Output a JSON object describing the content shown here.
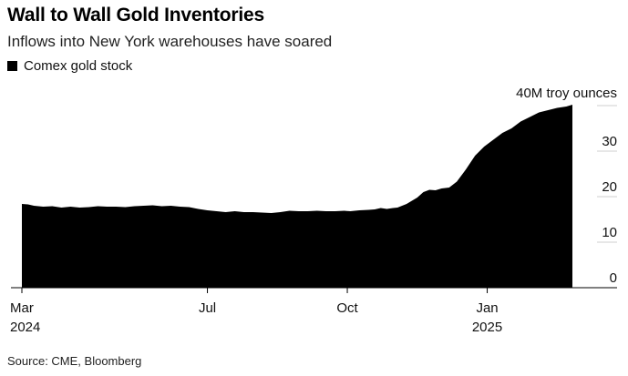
{
  "header": {
    "title": "Wall to Wall Gold Inventories",
    "subtitle": "Inflows into New York warehouses have soared"
  },
  "footer": {
    "source": "Source: CME, Bloomberg"
  },
  "chart_data": {
    "type": "area",
    "title": "Wall to Wall Gold Inventories",
    "subtitle": "Inflows into New York warehouses have soared",
    "series": [
      {
        "name": "Comex gold stock",
        "color": "#000000",
        "x": [
          0,
          4,
          8,
          14,
          20,
          26,
          32,
          38,
          44,
          50,
          56,
          62,
          68,
          74,
          80,
          86,
          92,
          98,
          104,
          110,
          116,
          122,
          128,
          134,
          140,
          146,
          152,
          158,
          164,
          170,
          176,
          182,
          188,
          194,
          200,
          206,
          212,
          216,
          222,
          228,
          232,
          236,
          240,
          244,
          247,
          250,
          253,
          256,
          260,
          264,
          268,
          272,
          276,
          281,
          286,
          292,
          298,
          304,
          310,
          316,
          322,
          328,
          334,
          340,
          346,
          352,
          358,
          362
        ],
        "values": [
          18.4,
          18.3,
          18.0,
          17.8,
          17.9,
          17.6,
          17.8,
          17.6,
          17.7,
          17.9,
          17.8,
          17.8,
          17.7,
          17.9,
          18.0,
          18.1,
          17.9,
          18.0,
          17.8,
          17.7,
          17.3,
          17.0,
          16.8,
          16.6,
          16.8,
          16.6,
          16.6,
          16.5,
          16.4,
          16.6,
          16.9,
          16.8,
          16.8,
          16.9,
          16.8,
          16.8,
          16.9,
          16.8,
          17.0,
          17.1,
          17.2,
          17.5,
          17.3,
          17.5,
          17.6,
          18.0,
          18.4,
          19.0,
          19.8,
          21.0,
          21.5,
          21.4,
          21.8,
          22.0,
          23.3,
          26.0,
          29.0,
          31.0,
          32.5,
          34.0,
          35.0,
          36.5,
          37.5,
          38.5,
          39.0,
          39.5,
          39.8,
          40.2
        ]
      }
    ],
    "x_unit": "days since Mar 1, 2024",
    "xlim": [
      0,
      380
    ],
    "x_ticks": [
      {
        "value": 0,
        "label": "Mar",
        "sublabel": "2024"
      },
      {
        "value": 122,
        "label": "Jul",
        "sublabel": ""
      },
      {
        "value": 214,
        "label": "Oct",
        "sublabel": ""
      },
      {
        "value": 306,
        "label": "Jan",
        "sublabel": "2025"
      }
    ],
    "ylim": [
      0,
      40
    ],
    "y_ticks": [
      0,
      10,
      20,
      30
    ],
    "y_top_label": "40M troy ounces",
    "ylabel": "",
    "xlabel": "",
    "legend": [
      {
        "label": "Comex gold stock",
        "color": "#000000"
      }
    ],
    "legend_position": "top-left",
    "y_axis_position": "right",
    "grid": true
  }
}
